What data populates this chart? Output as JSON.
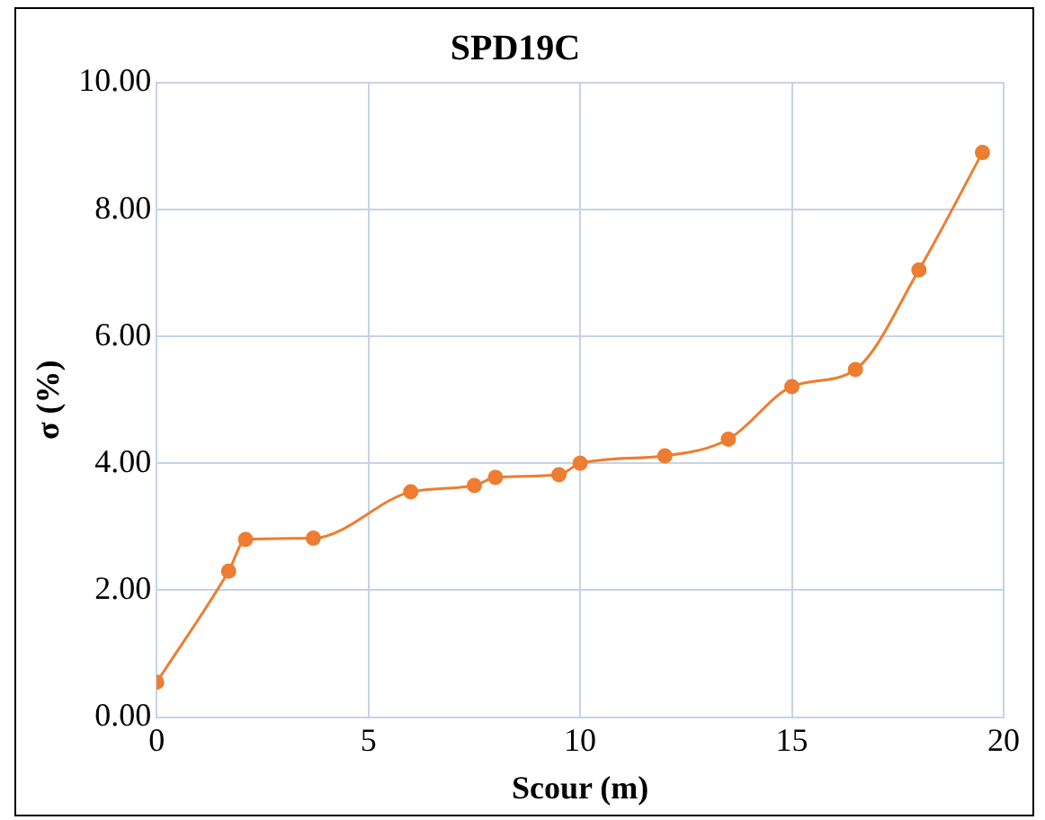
{
  "chart_data": {
    "type": "line",
    "title": "SPD19C",
    "xlabel": "Scour (m)",
    "ylabel": "σ (%)",
    "x": [
      0,
      1.7,
      2.1,
      3.7,
      6,
      7.5,
      8,
      9.5,
      10,
      12,
      13.5,
      15,
      16.5,
      18,
      19.5
    ],
    "series": [
      {
        "color": "#ed7d31",
        "values": [
          0.55,
          2.3,
          2.8,
          2.82,
          3.55,
          3.65,
          3.78,
          3.82,
          4.0,
          4.12,
          4.38,
          5.21,
          5.48,
          7.05,
          8.9
        ]
      }
    ],
    "xlim": [
      0,
      20
    ],
    "xticks": [
      0,
      5,
      10,
      15,
      20
    ],
    "ylim": [
      0,
      10
    ],
    "yticks": [
      {
        "value": 0,
        "label": "0.00"
      },
      {
        "value": 2,
        "label": "2.00"
      },
      {
        "value": 4,
        "label": "4.00"
      },
      {
        "value": 6,
        "label": "6.00"
      },
      {
        "value": 8,
        "label": "8.00"
      },
      {
        "value": 10,
        "label": "10.00"
      }
    ],
    "grid": true,
    "legend": false,
    "marker": "circle",
    "line_style": "solid"
  }
}
